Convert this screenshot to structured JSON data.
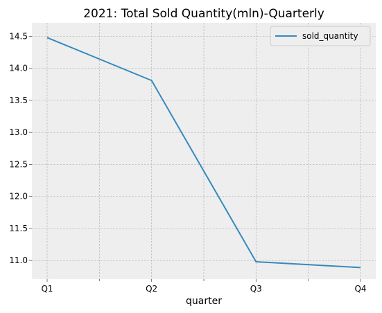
{
  "chart_data": {
    "type": "line",
    "title": "2021: Total Sold Quantity(mln)-Quarterly",
    "xlabel": "quarter",
    "ylabel": "",
    "categories": [
      "Q1",
      "Q2",
      "Q3",
      "Q4"
    ],
    "series": [
      {
        "name": "sold_quantity",
        "values": [
          14.48,
          13.81,
          10.98,
          10.89
        ],
        "color": "#348abd"
      }
    ],
    "ylim": [
      10.71,
      14.71
    ],
    "yticks": [
      "11.0",
      "11.5",
      "12.0",
      "12.5",
      "13.0",
      "13.5",
      "14.0",
      "14.5"
    ],
    "grid": true,
    "legend": "top-right"
  }
}
